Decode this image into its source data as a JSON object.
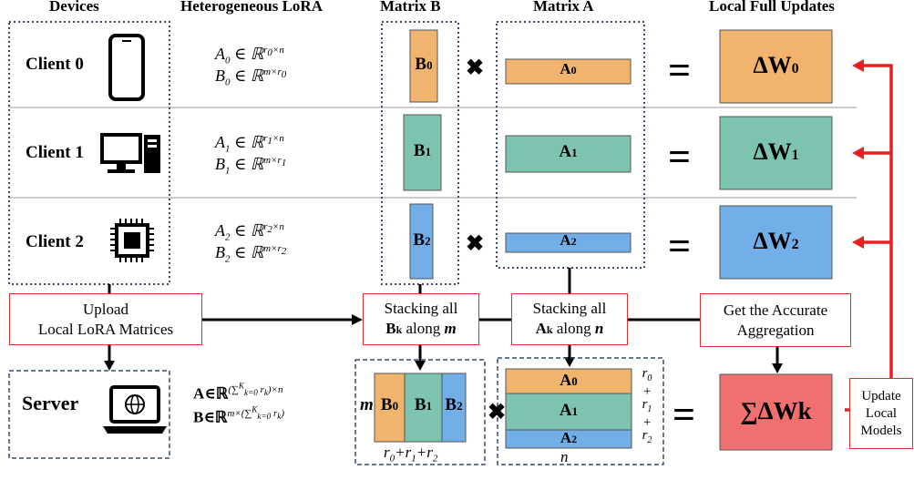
{
  "headers": {
    "devices": "Devices",
    "hetero": "Heterogeneous LoRA",
    "matrix_b": "Matrix B",
    "matrix_a": "Matrix A",
    "local_full": "Local Full Updates"
  },
  "clients": [
    {
      "label": "Client 0",
      "device": "smartphone-icon",
      "a_idx": "0",
      "b_idx": "0",
      "dw_idx": "0"
    },
    {
      "label": "Client 1",
      "device": "desktop-computer-icon",
      "a_idx": "1",
      "b_idx": "1",
      "dw_idx": "1"
    },
    {
      "label": "Client 2",
      "device": "chip-icon",
      "a_idx": "2",
      "b_idx": "2",
      "dw_idx": "2"
    }
  ],
  "lora": {
    "A": "A",
    "B": "B",
    "in": "∈",
    "R": "ℝ",
    "r": "r",
    "times": "×",
    "n": "n",
    "m": "m"
  },
  "blocks": {
    "B": "B",
    "A": "A",
    "dw": "ΔW"
  },
  "boxes": {
    "upload_1": "Upload",
    "upload_2": "Local LoRA Matrices",
    "stack_b_1": "Stacking all",
    "stack_b_2a": "B",
    "stack_b_2sub": "k",
    "stack_b_2b": " along ",
    "stack_b_2c": "m",
    "stack_a_1": "Stacking all",
    "stack_a_2a": "A",
    "stack_a_2sub": "k",
    "stack_a_2b": " along ",
    "stack_a_2c": "n",
    "aggregate_1": "Get the Accurate",
    "aggregate_2": "Aggregation",
    "update_1": "Update",
    "update_2": "Local",
    "update_3": "Models"
  },
  "server": {
    "label": "Server",
    "icon": "laptop-globe-icon",
    "A_def": "A∈ℝ",
    "A_exp": "(∑",
    "A_sub": "k=0",
    "A_sup": "K",
    "A_rest": " r",
    "A_rsub": "k",
    "A_tail": ")×n",
    "B_def": "B∈ℝ",
    "B_exp": "m×(∑",
    "B_tail": ")"
  },
  "stacked": {
    "m": "m",
    "b0": "B",
    "b0_sub": "0",
    "b1": "B",
    "b1_sub": "1",
    "b2": "B",
    "b2_sub": "2",
    "bottom_r0": "r",
    "bottom_r0_sub": "0",
    "plus": "+",
    "bottom_r1": "r",
    "bottom_r1_sub": "1",
    "bottom_r2": "r",
    "bottom_r2_sub": "2",
    "a0": "A",
    "a0_sub": "0",
    "a1": "A",
    "a1_sub": "1",
    "a2": "A",
    "a2_sub": "2",
    "n": "n",
    "sum_dw": "∑ΔWk"
  },
  "symbols": {
    "times": "✖",
    "equals": "="
  },
  "colors": {
    "orange": "#f0b46e",
    "teal": "#7cc3b0",
    "blue": "#72aee8",
    "sum_red": "#f07070",
    "red": "#e52020",
    "dotted": "#3b4a6b"
  }
}
